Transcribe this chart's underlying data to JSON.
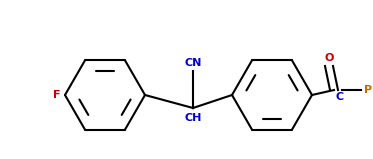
{
  "background_color": "#ffffff",
  "line_color": "#000000",
  "text_color_blue": "#0000cd",
  "text_color_red": "#cc0000",
  "text_color_orange": "#cc6600",
  "figsize": [
    3.73,
    1.59
  ],
  "dpi": 100,
  "lw": 1.5,
  "F_label": "F",
  "CN_label": "CN",
  "CH_label": "CH",
  "C_label": "C",
  "O_label": "O",
  "Ph_label": "Ph"
}
